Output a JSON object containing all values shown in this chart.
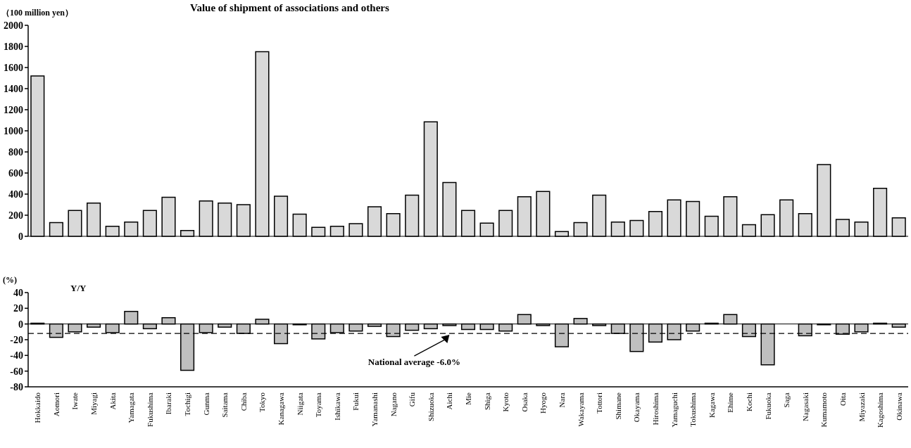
{
  "chart_data": [
    {
      "type": "bar",
      "title": "Value of shipment of associations and others",
      "ylabel": "（100 million yen）",
      "categories": [
        null,
        null,
        null,
        null,
        null,
        null,
        null,
        null,
        null,
        null,
        null,
        null,
        null,
        null,
        null,
        null,
        null,
        null,
        null,
        null,
        null,
        null,
        null,
        null,
        null,
        null,
        null,
        null,
        null,
        null,
        null,
        null,
        null,
        null,
        null,
        null,
        null,
        null,
        null,
        null,
        null,
        null,
        null,
        null,
        null,
        null,
        null
      ],
      "values": [
        1520,
        130,
        245,
        315,
        95,
        135,
        245,
        370,
        55,
        335,
        315,
        300,
        1750,
        380,
        210,
        85,
        95,
        120,
        280,
        215,
        390,
        1085,
        510,
        245,
        125,
        245,
        375,
        425,
        45,
        130,
        390,
        135,
        150,
        235,
        345,
        330,
        190,
        375,
        110,
        205,
        345,
        215,
        680,
        160,
        135,
        455,
        175
      ],
      "color": "#d9d9d9",
      "ylim": [
        0,
        2000
      ],
      "yticks": [
        0,
        200,
        400,
        600,
        800,
        1000,
        1200,
        1400,
        1600,
        1800,
        2000
      ]
    },
    {
      "type": "bar",
      "title": "Y/Y",
      "ylabel": "(%)",
      "categories": [
        "Hokkaido",
        "Aomori",
        "Iwate",
        "Miyagi",
        "Akita",
        "Yamagata",
        "Fukushima",
        "Ibaraki",
        "Tochigi",
        "Gunma",
        "Saitama",
        "Chiba",
        "Tokyo",
        "Kanagawa",
        "Niigata",
        "Toyama",
        "Ishikawa",
        "Fukui",
        "Yamanashi",
        "Nagano",
        "Gifu",
        "Shizuoka",
        "Aichi",
        "Mie",
        "Shiga",
        "Kyoto",
        "Osaka",
        "Hyogo",
        "Nara",
        "Wakayama",
        "Tottori",
        "Shimane",
        "Okayama",
        "Hiroshima",
        "Yamaguchi",
        "Tokushima",
        "Kagawa",
        "Ehime",
        "Kochi",
        "Fukuoka",
        "Saga",
        "Nagasaki",
        "Kumamoto",
        "Oita",
        "Miyazaki",
        "Kagoshima",
        "Okinawa"
      ],
      "values": [
        1,
        -17,
        -10,
        -4,
        -11,
        16,
        -6,
        8,
        -59,
        -11,
        -4,
        -12,
        6,
        -25,
        -1,
        -19,
        -11,
        -9,
        -3,
        -16,
        -8,
        -6,
        -2,
        -7,
        -7,
        -9,
        12,
        -2,
        -29,
        7,
        -2,
        -12,
        -35,
        -23,
        -20,
        -9,
        1,
        12,
        -16,
        -52,
        0,
        -15,
        -1,
        -13,
        -10,
        1,
        -4
      ],
      "color": "#bfbfbf",
      "ylim": [
        -80,
        40
      ],
      "yticks": [
        -80,
        -60,
        -40,
        -20,
        0,
        20,
        40
      ],
      "ref_lines": [
        {
          "axis": "y",
          "value": -12,
          "line_style": "dashed",
          "color": "#000000"
        }
      ],
      "annotations": [
        {
          "text": "National average -6.0%",
          "x": "Aichi",
          "y": -12
        }
      ]
    }
  ]
}
